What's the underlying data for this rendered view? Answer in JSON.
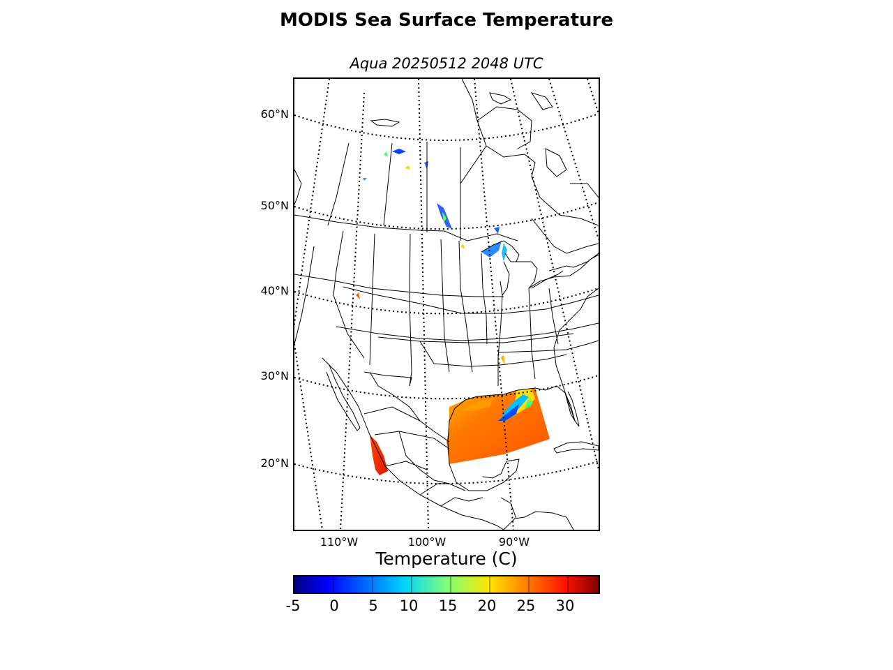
{
  "header": {
    "title": "MODIS Sea Surface Temperature",
    "subtitle": "Aqua 20250512 2048 UTC"
  },
  "map": {
    "latitude_labels": [
      "60°N",
      "50°N",
      "40°N",
      "30°N",
      "20°N"
    ],
    "longitude_labels": [
      "110°W",
      "100°W",
      "90°W"
    ]
  },
  "colorbar": {
    "label": "Temperature (C)",
    "ticks": [
      "-5",
      "0",
      "5",
      "10",
      "15",
      "20",
      "25",
      "30"
    ],
    "range": [
      -5,
      34
    ],
    "colormap": "jet"
  },
  "colors": {
    "coastline": "#000000",
    "graticule": "#000000",
    "gulf_sst_warm": "#ff6a00",
    "gulf_sst_hot": "#ff3a00",
    "cool_anomaly": "#0090ff"
  }
}
